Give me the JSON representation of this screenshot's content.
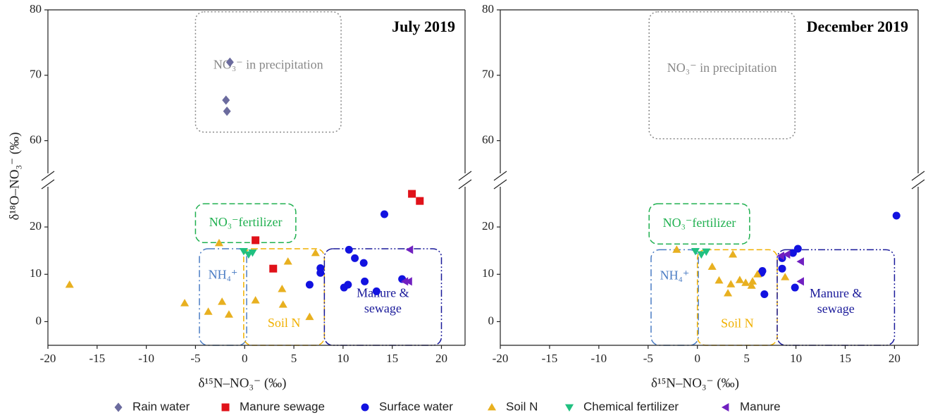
{
  "chart_data": [
    {
      "type": "scatter",
      "title": "July 2019",
      "xlabel": "δ¹⁵N–NO₃⁻ (‰)",
      "ylabel": "δ¹⁸O–NO₃⁻ (‰)",
      "xlim": [
        -20,
        22.4
      ],
      "xticks": [
        -20,
        -15,
        -10,
        -5,
        0,
        5,
        10,
        15,
        20
      ],
      "ylim": [
        -5,
        28.5
      ],
      "yticks": [
        0,
        10,
        20
      ],
      "ylim_upper": [
        55,
        80
      ],
      "yticks_upper": [
        60,
        70,
        80
      ],
      "series": [
        {
          "color": "#6b6b9e",
          "marker": "diamond",
          "x": [
            -1.5,
            -1.9,
            -1.8
          ],
          "values": [
            72.0,
            66.2,
            64.5
          ]
        },
        {
          "color": "#e0121a",
          "marker": "square",
          "x": [
            1.1,
            2.9,
            17.0,
            17.8
          ],
          "values": [
            17.2,
            11.2,
            27.0,
            25.5
          ]
        },
        {
          "color": "#1212e0",
          "marker": "circle",
          "x": [
            14.2,
            10.6,
            11.2,
            12.1,
            7.7,
            7.7,
            6.6,
            10.1,
            10.5,
            12.2,
            13.4,
            16.0
          ],
          "values": [
            22.7,
            15.2,
            13.4,
            12.4,
            11.3,
            10.3,
            7.8,
            7.2,
            7.8,
            8.5,
            6.4,
            9.0
          ]
        },
        {
          "color": "#e8b020",
          "marker": "triangle-up",
          "x": [
            -17.8,
            -6.1,
            -2.6,
            -3.7,
            -2.3,
            -1.6,
            1.1,
            3.8,
            3.9,
            4.4,
            6.6,
            7.2
          ],
          "values": [
            7.8,
            3.9,
            16.6,
            2.1,
            4.2,
            1.5,
            4.5,
            6.9,
            3.6,
            12.7,
            1.0,
            14.5
          ]
        },
        {
          "color": "#20c080",
          "marker": "triangle-down",
          "x": [
            -0.1,
            0.4,
            0.8
          ],
          "values": [
            14.9,
            14.2,
            14.6
          ]
        },
        {
          "color": "#7020c0",
          "marker": "triangle-left",
          "x": [
            16.8,
            16.3,
            16.7
          ],
          "values": [
            15.2,
            8.5,
            8.5
          ]
        }
      ],
      "regions": [
        {
          "label": [
            "NO₃⁻ in precipitation"
          ],
          "color": "#888888",
          "style": "dotted",
          "x": [
            -5,
            9.8
          ],
          "y": [
            61.3,
            79.7
          ]
        },
        {
          "label": [
            "NO₃⁻fertilizer"
          ],
          "color": "#20b050",
          "style": "dashed",
          "x": [
            -5,
            5.2
          ],
          "y": [
            16.7,
            24.9
          ]
        },
        {
          "label": [
            "NH₄⁺"
          ],
          "color": "#4a7cc4",
          "style": "dashdot",
          "x": [
            -4.6,
            0.2
          ],
          "y": [
            -5,
            15.4
          ]
        },
        {
          "label": [
            "Soil N"
          ],
          "color": "#f0b000",
          "style": "dashed",
          "x": [
            -0.1,
            8.1
          ],
          "y": [
            -5,
            15.4
          ]
        },
        {
          "label": [
            "Manure &",
            "sewage"
          ],
          "color": "#1a1a9a",
          "style": "dashdotdot",
          "x": [
            8.1,
            20
          ],
          "y": [
            -5,
            15.4
          ]
        }
      ]
    },
    {
      "type": "scatter",
      "title": "December 2019",
      "xlabel": "δ¹⁵N–NO₃⁻ (‰)",
      "xlim": [
        -20,
        22.4
      ],
      "xticks": [
        -20,
        -15,
        -10,
        -5,
        0,
        5,
        10,
        15,
        20
      ],
      "ylim": [
        -5,
        28.5
      ],
      "yticks": [
        0,
        10,
        20
      ],
      "ylim_upper": [
        55,
        80
      ],
      "yticks_upper": [
        60,
        70,
        80
      ],
      "series": [
        {
          "color": "#1212e0",
          "marker": "circle",
          "x": [
            20.2,
            10.2,
            9.7,
            8.6,
            8.6,
            6.6,
            6.5,
            6.8,
            9.9
          ],
          "values": [
            22.4,
            15.4,
            14.5,
            13.4,
            11.2,
            10.7,
            10.3,
            5.8,
            7.2
          ]
        },
        {
          "color": "#e8b020",
          "marker": "triangle-up",
          "x": [
            -2.1,
            3.6,
            1.5,
            2.2,
            3.1,
            3.4,
            4.3,
            4.9,
            5.5,
            5.6,
            6.1,
            8.9
          ],
          "values": [
            15.2,
            14.2,
            11.6,
            8.7,
            6.0,
            7.9,
            8.8,
            8.2,
            7.6,
            8.5,
            10.0,
            9.4
          ]
        },
        {
          "color": "#20c080",
          "marker": "triangle-down",
          "x": [
            -0.2,
            0.4,
            0.9
          ],
          "values": [
            14.9,
            14.2,
            14.8
          ]
        },
        {
          "color": "#7020c0",
          "marker": "triangle-left",
          "x": [
            8.5,
            9.1,
            10.5,
            10.5
          ],
          "values": [
            13.9,
            14.2,
            12.7,
            8.5
          ]
        }
      ],
      "regions": [
        {
          "label": [
            "NO₃⁻ in precipitation"
          ],
          "color": "#888888",
          "style": "dotted",
          "x": [
            -4.9,
            9.9
          ],
          "y": [
            60.3,
            79.7
          ]
        },
        {
          "label": [
            "NO₃⁻fertilizer"
          ],
          "color": "#20b050",
          "style": "dashed",
          "x": [
            -4.9,
            5.3
          ],
          "y": [
            16.4,
            24.9
          ]
        },
        {
          "label": [
            "NH₄⁺"
          ],
          "color": "#4a7cc4",
          "style": "dashdot",
          "x": [
            -4.7,
            0.1
          ],
          "y": [
            -5,
            15.2
          ]
        },
        {
          "label": [
            "Soil N"
          ],
          "color": "#f0b000",
          "style": "dashed",
          "x": [
            0,
            8.1
          ],
          "y": [
            -5,
            15.2
          ]
        },
        {
          "label": [
            "Manure &",
            "sewage"
          ],
          "color": "#1a1a9a",
          "style": "dashdotdot",
          "x": [
            8.1,
            20
          ],
          "y": [
            -5,
            15.2
          ]
        }
      ]
    }
  ],
  "legend": {
    "position": "bottom",
    "entries": [
      {
        "name": "Rain water",
        "color": "#6b6b9e",
        "marker": "diamond"
      },
      {
        "name": "Manure sewage",
        "color": "#e0121a",
        "marker": "square"
      },
      {
        "name": "Surface water",
        "color": "#1212e0",
        "marker": "circle"
      },
      {
        "name": "Soil N",
        "color": "#e8b020",
        "marker": "triangle-up"
      },
      {
        "name": "Chemical fertilizer",
        "color": "#20c080",
        "marker": "triangle-down"
      },
      {
        "name": "Manure",
        "color": "#7020c0",
        "marker": "triangle-left"
      }
    ]
  }
}
